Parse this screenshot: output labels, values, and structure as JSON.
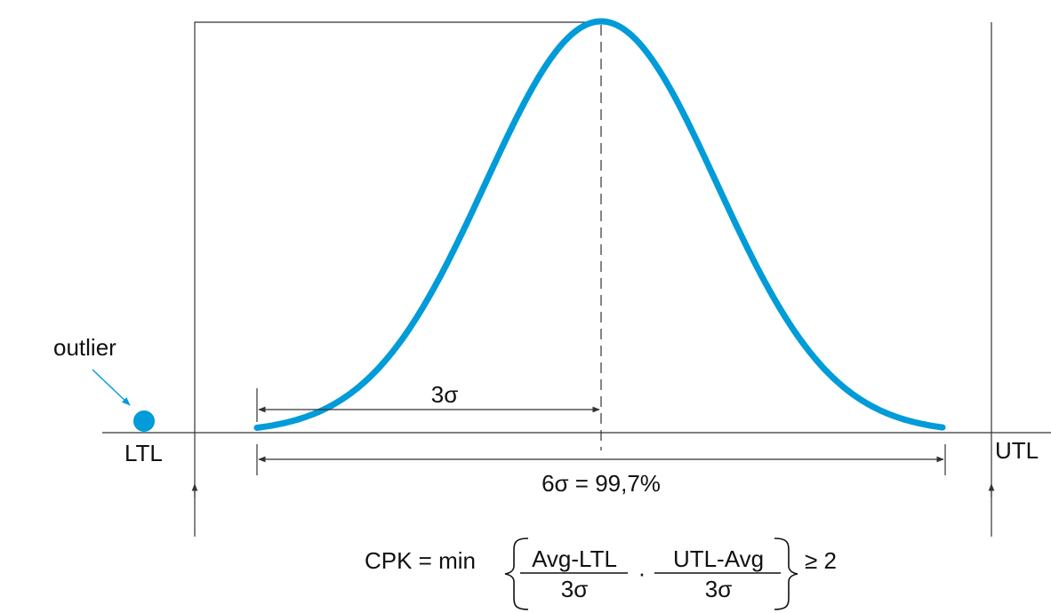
{
  "diagram": {
    "labels": {
      "outlier": "outlier",
      "ltl": "LTL",
      "utl": "UTL",
      "three_sigma": "3σ",
      "six_sigma": "6σ = 99,7%"
    },
    "formula": {
      "lhs": "CPK = min",
      "frac1_num": "Avg-LTL",
      "frac1_den": "3σ",
      "separator": "·",
      "frac2_num": "UTL-Avg",
      "frac2_den": "3σ",
      "rhs": "≥ 2"
    },
    "colors": {
      "curve": "#009bd9",
      "outlier_dot": "#009bd9",
      "outlier_arrow": "#009bd9",
      "lines": "#333333",
      "text": "#111111"
    }
  }
}
